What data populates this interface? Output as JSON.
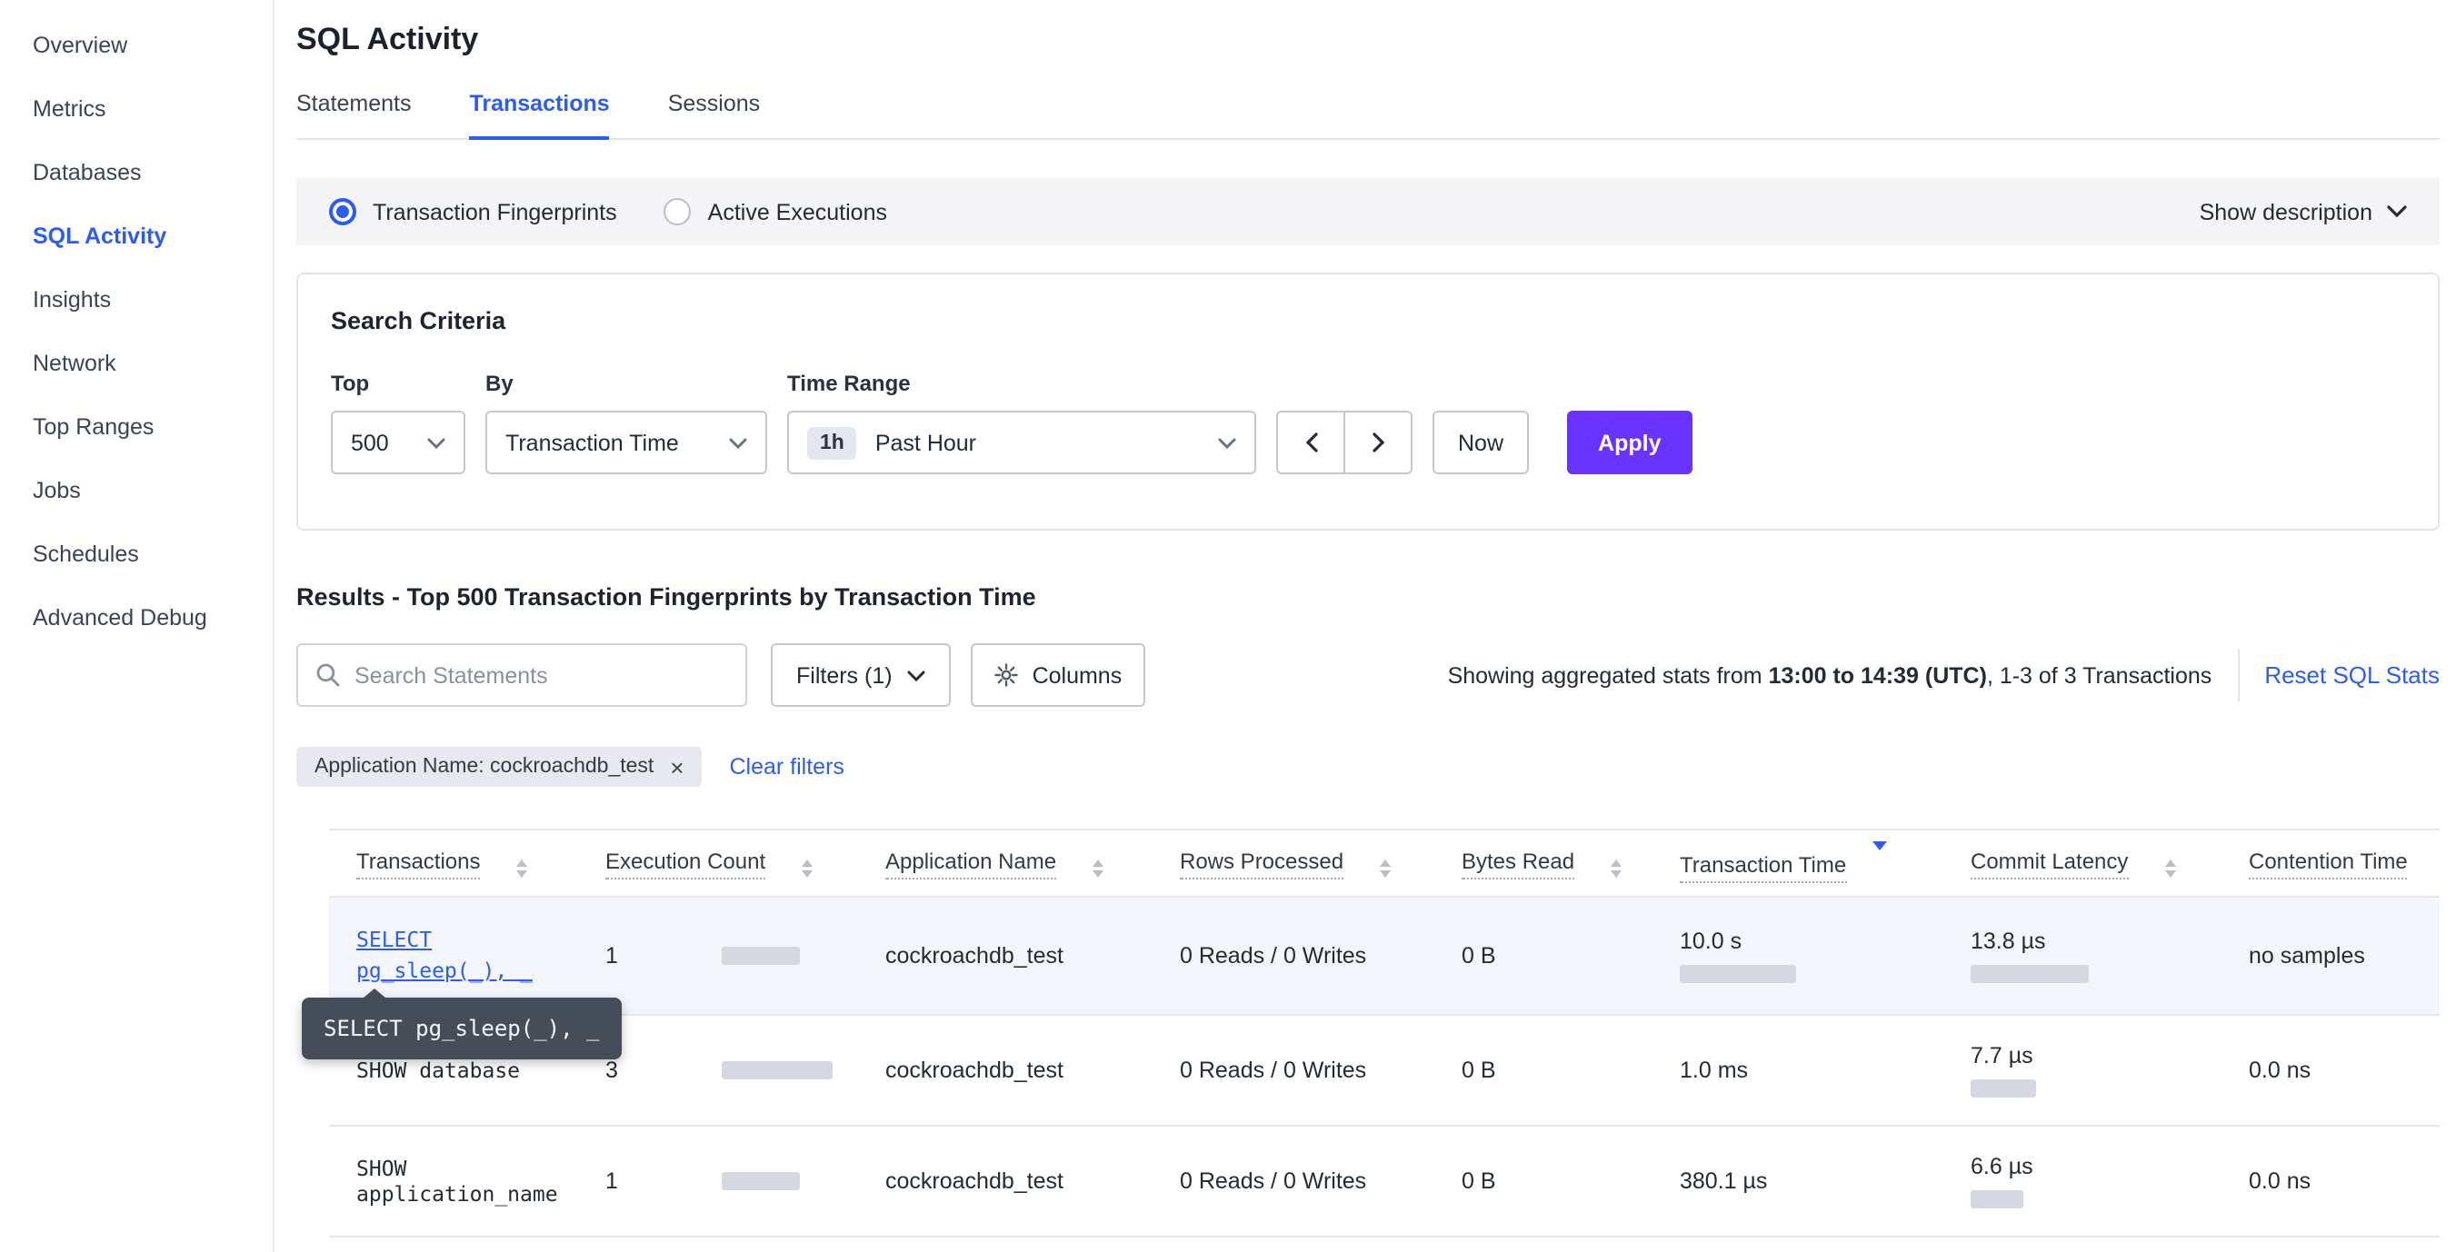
{
  "colors": {
    "accent_blue": "#2c5cf2",
    "accent_purple": "#6933ff",
    "bar_fill": "#d5d7e1",
    "tooltip_bg": "#454d59",
    "highlight_row": "#f3f6fd"
  },
  "sidebar": {
    "items": [
      {
        "label": "Overview",
        "active": false
      },
      {
        "label": "Metrics",
        "active": false
      },
      {
        "label": "Databases",
        "active": false
      },
      {
        "label": "SQL Activity",
        "active": true
      },
      {
        "label": "Insights",
        "active": false
      },
      {
        "label": "Network",
        "active": false
      },
      {
        "label": "Top Ranges",
        "active": false
      },
      {
        "label": "Jobs",
        "active": false
      },
      {
        "label": "Schedules",
        "active": false
      },
      {
        "label": "Advanced Debug",
        "active": false
      }
    ]
  },
  "page": {
    "title": "SQL Activity"
  },
  "tabs": [
    {
      "label": "Statements",
      "active": false
    },
    {
      "label": "Transactions",
      "active": true
    },
    {
      "label": "Sessions",
      "active": false
    }
  ],
  "view_toggle": {
    "fingerprints_label": "Transaction Fingerprints",
    "fingerprints_selected": true,
    "active_executions_label": "Active Executions",
    "active_executions_selected": false,
    "show_description_label": "Show description"
  },
  "search_criteria": {
    "title": "Search Criteria",
    "top_label": "Top",
    "top_value": "500",
    "by_label": "By",
    "by_value": "Transaction Time",
    "time_range_label": "Time Range",
    "time_range_badge": "1h",
    "time_range_value": "Past Hour",
    "now_label": "Now",
    "apply_label": "Apply"
  },
  "results": {
    "heading": "Results - Top 500 Transaction Fingerprints by Transaction Time",
    "search_placeholder": "Search Statements",
    "filters_label": "Filters (1)",
    "columns_label": "Columns",
    "stats_prefix": "Showing aggregated stats from ",
    "stats_range": "13:00 to 14:39 (UTC)",
    "stats_suffix": ", 1-3 of 3 Transactions",
    "reset_label": "Reset SQL Stats",
    "filter_chip_label": "Application Name: cockroachdb_test",
    "filter_chip_close": "×",
    "clear_filters_label": "Clear filters"
  },
  "table": {
    "columns": [
      "Transactions",
      "Execution Count",
      "Application Name",
      "Rows Processed",
      "Bytes Read",
      "Transaction Time",
      "Commit Latency",
      "Contention Time"
    ],
    "sorted": {
      "column": "Transaction Time",
      "direction": "desc"
    },
    "tooltip_text": "SELECT pg_sleep(_), _",
    "rows": [
      {
        "transaction": "SELECT pg_sleep(_), _",
        "execution_count": "1",
        "execution_bar": 43,
        "application_name": "cockroachdb_test",
        "rows_processed": "0 Reads / 0 Writes",
        "bytes_read": "0 B",
        "transaction_time": "10.0 s",
        "transaction_time_bar": 64,
        "commit_latency": "13.8 µs",
        "commit_latency_bar": 65,
        "contention_time": "no samples"
      },
      {
        "transaction": "SHOW database",
        "execution_count": "3",
        "execution_bar": 61,
        "application_name": "cockroachdb_test",
        "rows_processed": "0 Reads / 0 Writes",
        "bytes_read": "0 B",
        "transaction_time": "1.0 ms",
        "transaction_time_bar": 0,
        "commit_latency": "7.7 µs",
        "commit_latency_bar": 36,
        "contention_time": "0.0 ns"
      },
      {
        "transaction": "SHOW application_name",
        "execution_count": "1",
        "execution_bar": 43,
        "application_name": "cockroachdb_test",
        "rows_processed": "0 Reads / 0 Writes",
        "bytes_read": "0 B",
        "transaction_time": "380.1 µs",
        "transaction_time_bar": 0,
        "commit_latency": "6.6 µs",
        "commit_latency_bar": 29,
        "contention_time": "0.0 ns"
      }
    ]
  }
}
